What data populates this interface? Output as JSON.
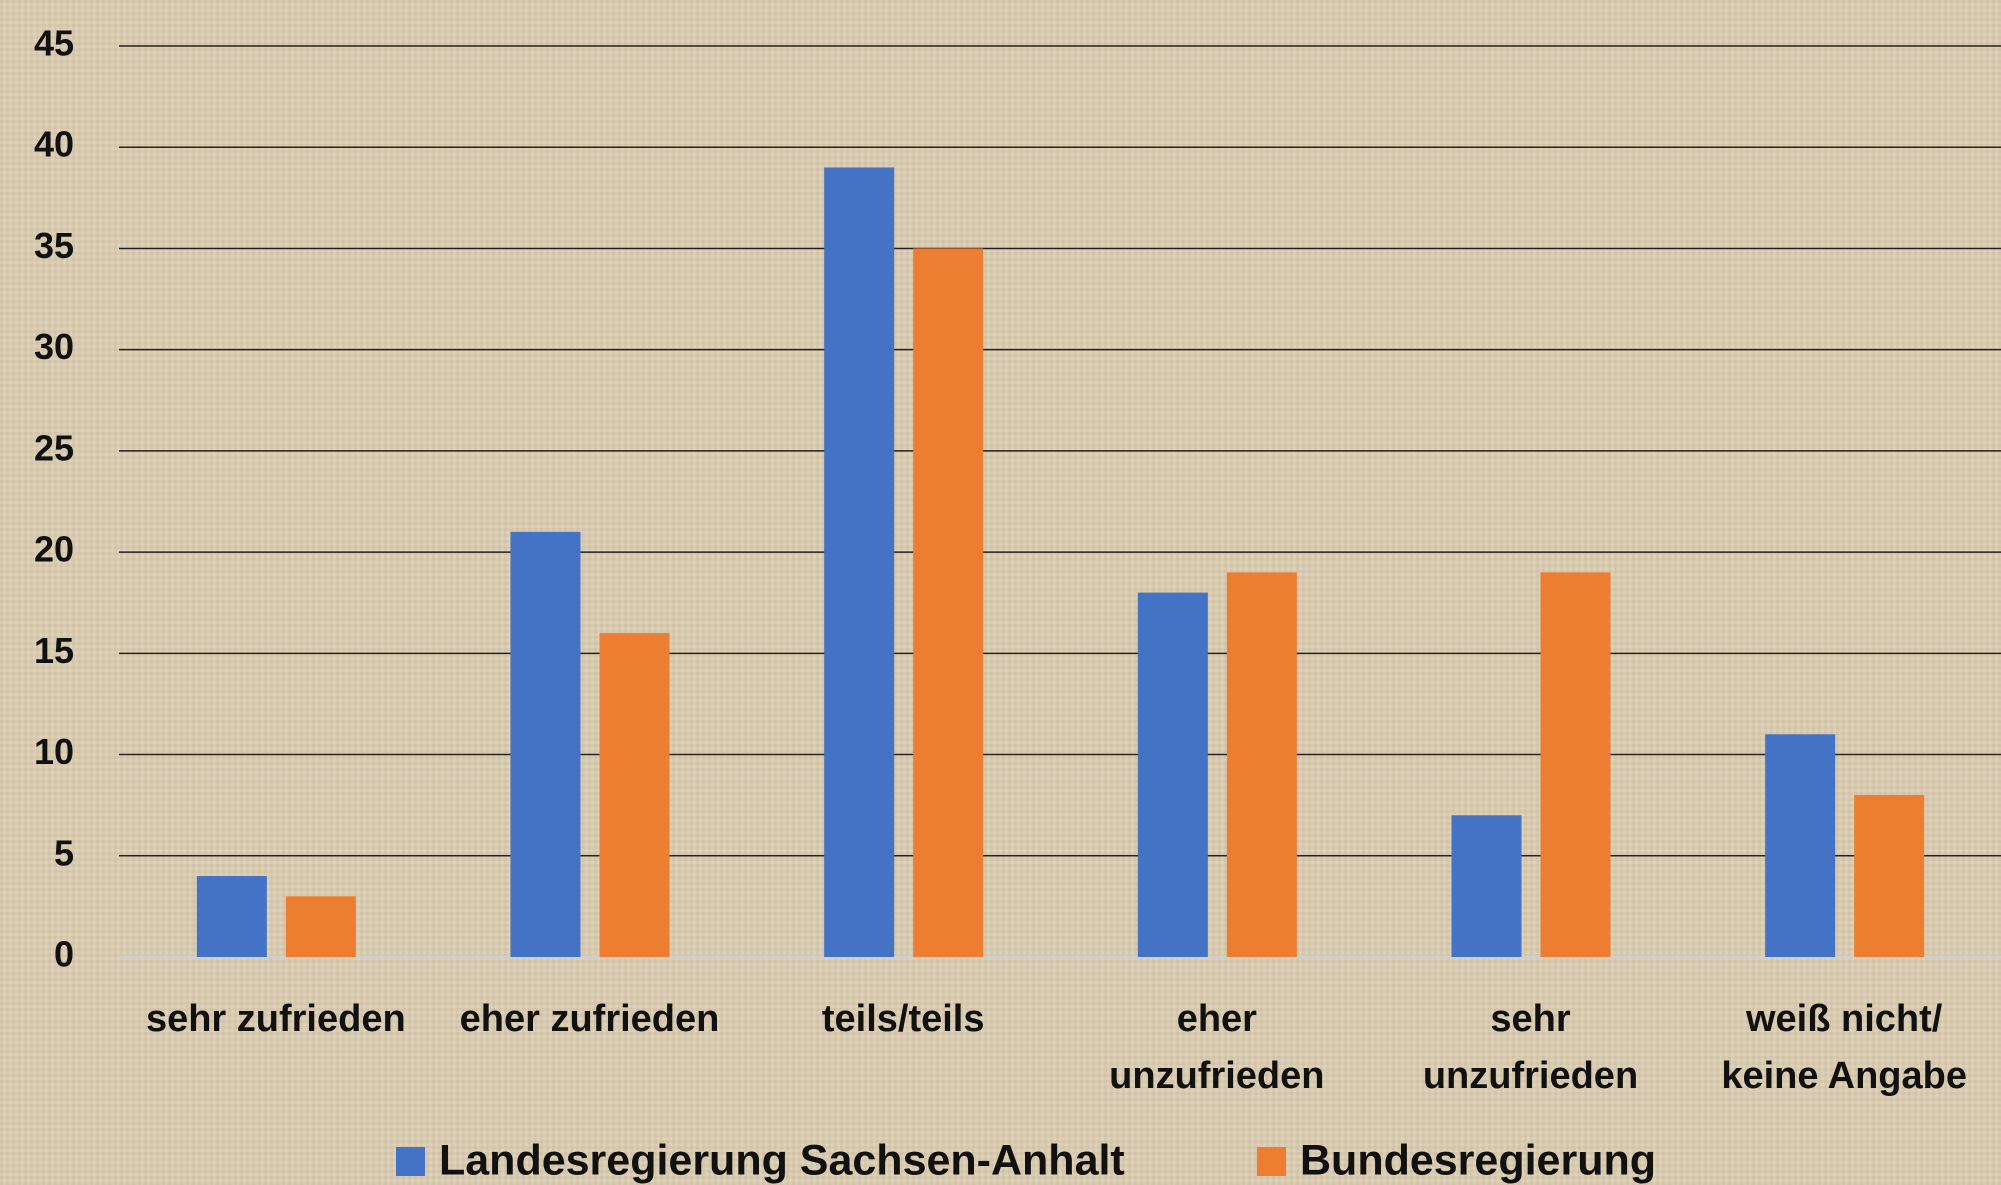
{
  "chart_data": {
    "type": "bar",
    "categories": [
      [
        "sehr zufrieden"
      ],
      [
        "eher zufrieden"
      ],
      [
        "teils/teils"
      ],
      [
        "eher",
        "unzufrieden"
      ],
      [
        "sehr",
        "unzufrieden"
      ],
      [
        "weiß nicht/",
        "keine Angabe"
      ]
    ],
    "series": [
      {
        "name": "Landesregierung Sachsen-Anhalt",
        "color": "#4472c4",
        "values": [
          4,
          21,
          39,
          18,
          7,
          11
        ]
      },
      {
        "name": "Bundesregierung",
        "color": "#ed7d31",
        "values": [
          3,
          16,
          35,
          19,
          19,
          8
        ]
      }
    ],
    "ylim": [
      0,
      45
    ],
    "yticks": [
      0,
      5,
      10,
      15,
      20,
      25,
      30,
      35,
      40,
      45
    ],
    "grid": true,
    "legend": "bottom"
  }
}
